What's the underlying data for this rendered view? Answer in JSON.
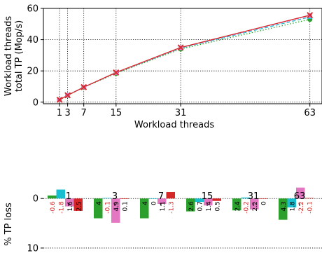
{
  "chart_data": [
    {
      "type": "line",
      "xlabel": "Workload threads",
      "ylabel": [
        "Workload threads",
        "total TP (Mop/s)"
      ],
      "x": [
        1,
        3,
        7,
        15,
        31,
        63
      ],
      "x_ticks": [
        "1",
        "3",
        "7",
        "15",
        "31",
        "63"
      ],
      "xlim": [
        -3,
        66
      ],
      "ylim": [
        -1,
        60
      ],
      "y_ticks": [
        "0",
        "20",
        "40",
        "60"
      ],
      "grid": true,
      "grid_axes": "x and y (dotted, at ticks)",
      "series": [
        {
          "color": "#2ca02c",
          "marker": "circle",
          "linestyle": "dotted",
          "values": [
            1.5,
            4.3,
            9.5,
            18.4,
            34.0,
            53.0
          ]
        },
        {
          "color": "#17becf",
          "marker": "triangle",
          "linestyle": "dashed",
          "values": [
            1.5,
            4.4,
            9.6,
            18.8,
            34.6,
            54.5
          ]
        },
        {
          "color": "#e377c2",
          "marker": "square",
          "linestyle": "dashdot",
          "values": [
            1.5,
            4.4,
            9.6,
            18.9,
            34.8,
            55.4
          ]
        },
        {
          "color": "#d62728",
          "marker": "x",
          "linestyle": "solid",
          "values": [
            1.5,
            4.4,
            9.6,
            19.0,
            35.0,
            55.7
          ]
        }
      ]
    },
    {
      "type": "bar",
      "ylabel": "% TP loss",
      "y_inverted": true,
      "ylim": [
        -3,
        11
      ],
      "y_ticks": [
        "0",
        "10"
      ],
      "grid": "y dotted at 0 and 10",
      "groups": [
        "1",
        "3",
        "7",
        "15",
        "31",
        "63"
      ],
      "series_colors": [
        "#2ca02c",
        "#17becf",
        "#e377c2",
        "#d62728"
      ],
      "values": [
        [
          -0.6,
          -1.8,
          1.6,
          2.5
        ],
        [
          4,
          -0.1,
          4.9,
          0.1
        ],
        [
          4,
          0,
          1.1,
          -1.3
        ],
        [
          2.6,
          0.7,
          1.4,
          0.5
        ],
        [
          2.4,
          -0.2,
          2.2,
          0
        ],
        [
          4.3,
          1.8,
          -2.2,
          -0.1
        ]
      ],
      "value_labels": [
        [
          "-0.6",
          "-1.8",
          "1.6",
          "2.5"
        ],
        [
          "4",
          "-0.1",
          "4.9",
          "0.1"
        ],
        [
          "4",
          "0",
          "1.1",
          "-1.3"
        ],
        [
          "2.6",
          "0.7",
          "1.4",
          "0.5"
        ],
        [
          "2.4",
          "-0.2",
          "2.2",
          "0"
        ],
        [
          "4.3",
          "1.8",
          "-2.2",
          "-0.1"
        ]
      ],
      "label_colors": {
        "positive": "#000000",
        "negative": "#d62728"
      }
    }
  ]
}
